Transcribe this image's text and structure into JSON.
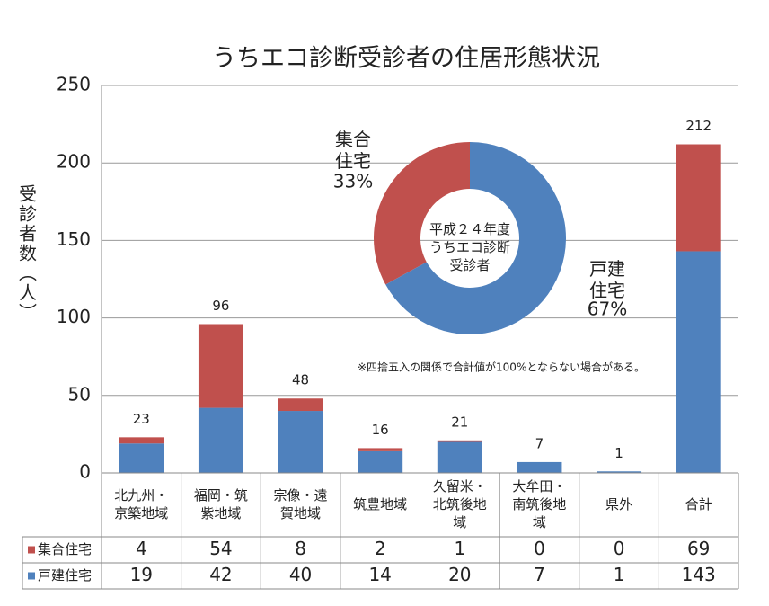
{
  "chart_data": [
    {
      "type": "bar",
      "stacked": true,
      "title": "うちエコ診断受診者の住居形態状況",
      "y_label": "受診者数（人）",
      "categories": [
        "北九州・京築地域",
        "福岡・筑紫地域",
        "宗像・遠賀地域",
        "筑豊地域",
        "久留米・北筑後地域",
        "大牟田・南筑後地域",
        "県外",
        "合計"
      ],
      "series": [
        {
          "name": "集合住宅",
          "color": "#c0504d",
          "values": [
            4,
            54,
            8,
            2,
            1,
            0,
            0,
            69
          ]
        },
        {
          "name": "戸建住宅",
          "color": "#4f81bd",
          "values": [
            19,
            42,
            40,
            14,
            20,
            7,
            1,
            143
          ]
        }
      ],
      "totals": [
        23,
        96,
        48,
        16,
        21,
        7,
        1,
        212
      ],
      "ylim": [
        0,
        250
      ],
      "yticks": [
        0,
        50,
        100,
        150,
        200,
        250
      ],
      "grid": true,
      "data_table": true,
      "note": "※四捨五入の関係で合計値が100%とならない場合がある。"
    },
    {
      "type": "pie",
      "donut": true,
      "center_label": "平成２４年度うちエコ診断受診者",
      "categories": [
        "集合住宅",
        "戸建住宅"
      ],
      "values": [
        33,
        67
      ],
      "value_labels": [
        "33%",
        "67%"
      ],
      "colors": [
        "#c0504d",
        "#4f81bd"
      ]
    }
  ]
}
